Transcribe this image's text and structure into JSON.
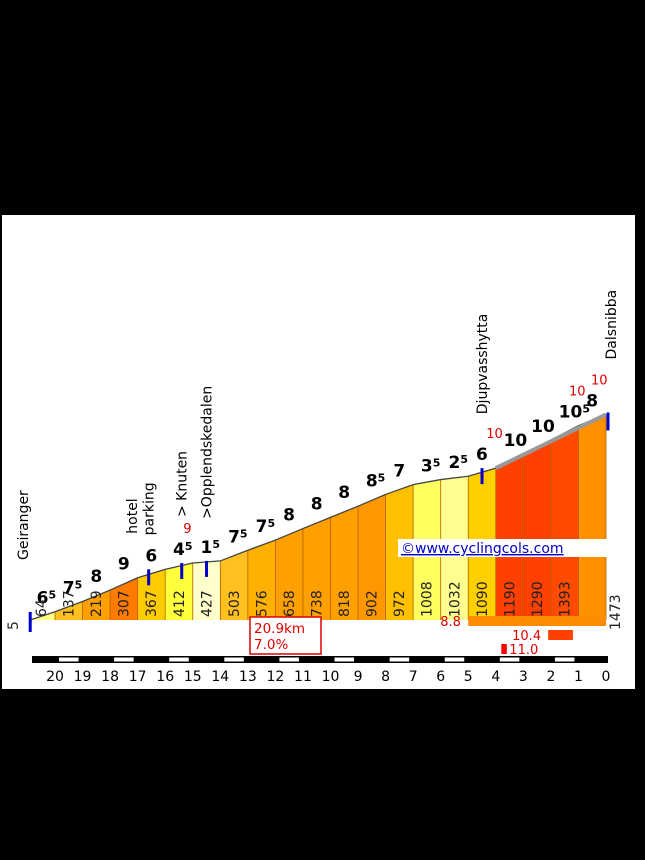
{
  "chart_data": {
    "type": "area",
    "title": "",
    "xlabel": "",
    "ylabel": "",
    "x_unit": "km to summit",
    "x_ticks": [
      "20",
      "19",
      "18",
      "17",
      "16",
      "15",
      "14",
      "13",
      "12",
      "11",
      "10",
      "9",
      "8",
      "7",
      "6",
      "5",
      "4",
      "3",
      "2",
      "1",
      "0"
    ],
    "start_altitude": "5",
    "summit_altitude": "1473",
    "segments": [
      {
        "alt": 64,
        "grade": 6.5,
        "label": "65",
        "color": "#ffff80"
      },
      {
        "alt": 137,
        "grade": 7.5,
        "label": "75",
        "color": "#ffc020"
      },
      {
        "alt": 219,
        "grade": 8,
        "label": "8",
        "color": "#ffa000"
      },
      {
        "alt": 307,
        "grade": 9,
        "label": "9",
        "color": "#ff7a00"
      },
      {
        "alt": 367,
        "grade": 6,
        "label": "6",
        "color": "#ffcc00"
      },
      {
        "alt": 412,
        "grade": 4.5,
        "label": "45",
        "color": "#ffff3c"
      },
      {
        "alt": 427,
        "grade": 1.5,
        "label": "15",
        "color": "#ffffcc"
      },
      {
        "alt": 503,
        "grade": 7.5,
        "label": "75",
        "color": "#ffc020"
      },
      {
        "alt": 576,
        "grade": 7.5,
        "label": "75",
        "color": "#ffb000"
      },
      {
        "alt": 658,
        "grade": 8,
        "label": "8",
        "color": "#ffa000"
      },
      {
        "alt": 738,
        "grade": 8,
        "label": "8",
        "color": "#ffa000"
      },
      {
        "alt": 818,
        "grade": 8,
        "label": "8",
        "color": "#ffa000"
      },
      {
        "alt": 902,
        "grade": 8.5,
        "label": "85",
        "color": "#ff9800"
      },
      {
        "alt": 972,
        "grade": 7,
        "label": "7",
        "color": "#ffc000"
      },
      {
        "alt": 1008,
        "grade": 3.5,
        "label": "35",
        "color": "#ffff60"
      },
      {
        "alt": 1032,
        "grade": 2.5,
        "label": "25",
        "color": "#ffff90"
      },
      {
        "alt": 1090,
        "grade": 6,
        "label": "6",
        "color": "#ffd000"
      },
      {
        "alt": 1190,
        "grade": 10,
        "label": "10",
        "color": "#ff4000"
      },
      {
        "alt": 1290,
        "grade": 10,
        "label": "10",
        "color": "#ff4000"
      },
      {
        "alt": 1393,
        "grade": 10.5,
        "label": "105",
        "color": "#ff4a00"
      },
      {
        "alt": 1473,
        "grade": 8,
        "label": "8",
        "color": "#ff9000"
      }
    ],
    "red_markers": [
      {
        "km": 15.2,
        "text": "9"
      },
      {
        "km": 4.2,
        "text": "10"
      },
      {
        "km": 1.2,
        "text": "10"
      },
      {
        "km": 0.4,
        "text": "10"
      }
    ],
    "places": [
      {
        "km": 20.9,
        "text": "Geiranger"
      },
      {
        "km": 17.2,
        "text": "hotel"
      },
      {
        "km": 16.6,
        "text": "parking"
      },
      {
        "km": 15.4,
        "text": "> Knuten"
      },
      {
        "km": 14.5,
        "text": ">Opplendskedalen"
      },
      {
        "km": 4.5,
        "text": "Djupvasshytta"
      },
      {
        "km": 0.2,
        "text": "Dalsnibba"
      }
    ],
    "summary": {
      "distance": "20.9km",
      "gradient": "7.0%"
    },
    "steep_sections": [
      {
        "label": "8.8",
        "from_km": 5,
        "to_km": 0,
        "color": "#ff8c00"
      },
      {
        "label": "10.4",
        "from_km": 2.1,
        "to_km": 1.2,
        "color": "#ff4000"
      },
      {
        "label": "11.0",
        "from_km": 3.8,
        "to_km": 3.6,
        "color": "#ff0000"
      }
    ],
    "credit": "©www.cyclingcols.com",
    "accent": "#0000cc"
  }
}
